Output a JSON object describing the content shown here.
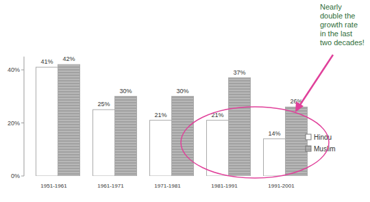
{
  "chart_data": {
    "type": "bar",
    "categories": [
      "1951-1961",
      "1961-1971",
      "1971-1981",
      "1981-1991",
      "1991-2001"
    ],
    "series": [
      {
        "name": "Hindu",
        "color": "#ffffff",
        "values": [
          41,
          25,
          21,
          21,
          14
        ],
        "value_labels": [
          "41%",
          "25%",
          "21%",
          "21%",
          "14%"
        ]
      },
      {
        "name": "Muslim",
        "color": "#b8b8b8",
        "values": [
          42,
          30,
          30,
          37,
          26
        ],
        "value_labels": [
          "42%",
          "30%",
          "30%",
          "37%",
          "26%"
        ]
      }
    ],
    "ylim": [
      0,
      45
    ],
    "yticks": [
      {
        "value": 0,
        "label": "0%"
      },
      {
        "value": 20,
        "label": "20%"
      },
      {
        "value": 40,
        "label": "40%"
      }
    ],
    "grid": false,
    "legend": "right",
    "data_labels": true,
    "annotation": [
      "Nearly",
      "double the",
      "growth rate",
      "in the last",
      "two decades!"
    ]
  }
}
